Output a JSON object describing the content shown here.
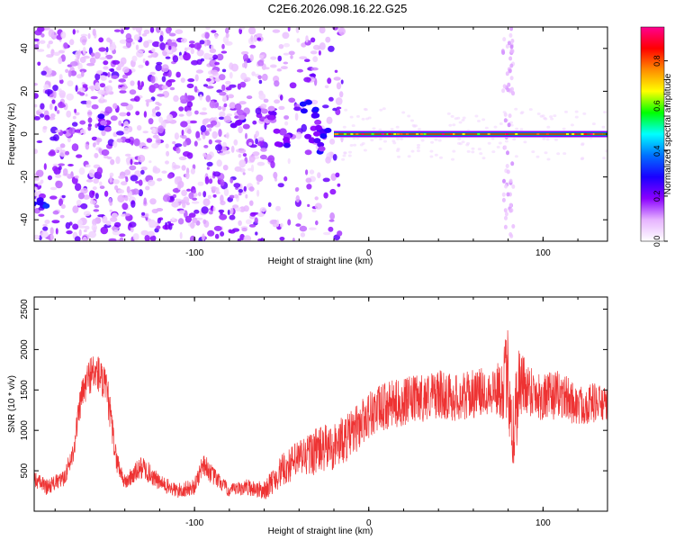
{
  "title": "C2E6.2026.098.16.22.G25",
  "chart_data": [
    {
      "type": "heatmap",
      "xlabel": "Height of straight line (km)",
      "ylabel": "Frequency (Hz)",
      "xlim": [
        -192,
        137
      ],
      "ylim": [
        -50,
        50
      ],
      "xticks": [
        -100,
        0,
        100
      ],
      "yticks": [
        -40,
        -20,
        0,
        20,
        40
      ],
      "colorbar": {
        "label": "Normalized spectral amplitude",
        "range": [
          0,
          0.95
        ],
        "ticks": [
          0.0,
          0.2,
          0.4,
          0.6,
          0.8
        ],
        "colors": [
          "#ffffff",
          "#e6b3ff",
          "#8a00ff",
          "#1a00ff",
          "#0070ff",
          "#00ffff",
          "#00ff00",
          "#ffff00",
          "#ff8c00",
          "#ff0000",
          "#ff0090"
        ]
      },
      "features": {
        "carrier_line": {
          "x_start": -20,
          "x_end": 137,
          "frequency": 0,
          "amplitude": 0.85
        },
        "scattered_clusters": [
          {
            "x": -190,
            "frequency": -30,
            "amplitude": 0.35
          },
          {
            "x": -150,
            "frequency": 5,
            "amplitude": 0.3
          },
          {
            "x": -75,
            "frequency": 7,
            "amplitude": 0.25
          },
          {
            "x": -55,
            "frequency": 10,
            "amplitude": 0.25
          },
          {
            "x": -48,
            "frequency": -2,
            "amplitude": 0.3
          },
          {
            "x": -35,
            "frequency": 12,
            "amplitude": 0.3
          },
          {
            "x": -30,
            "frequency": -5,
            "amplitude": 0.3
          },
          {
            "x": -27,
            "frequency": 3,
            "amplitude": 0.3
          }
        ],
        "vertical_band": {
          "x": 80,
          "frequency_range": [
            -50,
            50
          ]
        }
      }
    },
    {
      "type": "line",
      "xlabel": "Height of straight line (km)",
      "ylabel": "SNR (10 * v/v)",
      "xlim": [
        -192,
        137
      ],
      "ylim": [
        0,
        2650
      ],
      "xticks": [
        -100,
        0,
        100
      ],
      "yticks": [
        500,
        1000,
        1500,
        2000,
        2500
      ],
      "color": "#ee3333",
      "series": [
        {
          "name": "SNR",
          "x": [
            -192,
            -185,
            -175,
            -170,
            -165,
            -160,
            -155,
            -150,
            -145,
            -140,
            -130,
            -120,
            -110,
            -100,
            -95,
            -90,
            -85,
            -80,
            -70,
            -60,
            -50,
            -40,
            -30,
            -20,
            -10,
            0,
            10,
            20,
            30,
            40,
            50,
            60,
            70,
            75,
            80,
            83,
            86,
            90,
            100,
            110,
            120,
            130,
            137
          ],
          "values": [
            400,
            300,
            400,
            700,
            1400,
            1700,
            1700,
            1450,
            650,
            350,
            550,
            350,
            250,
            300,
            600,
            450,
            350,
            250,
            300,
            250,
            500,
            650,
            750,
            800,
            950,
            1200,
            1300,
            1350,
            1400,
            1450,
            1400,
            1450,
            1500,
            1500,
            1700,
            900,
            1600,
            1550,
            1400,
            1450,
            1300,
            1350,
            1300
          ],
          "spread": [
            100,
            100,
            100,
            150,
            200,
            250,
            250,
            250,
            150,
            100,
            150,
            100,
            100,
            100,
            150,
            120,
            100,
            80,
            100,
            120,
            200,
            250,
            300,
            300,
            300,
            300,
            300,
            300,
            300,
            300,
            300,
            300,
            300,
            350,
            600,
            700,
            500,
            350,
            300,
            300,
            250,
            250,
            200
          ]
        }
      ]
    }
  ]
}
